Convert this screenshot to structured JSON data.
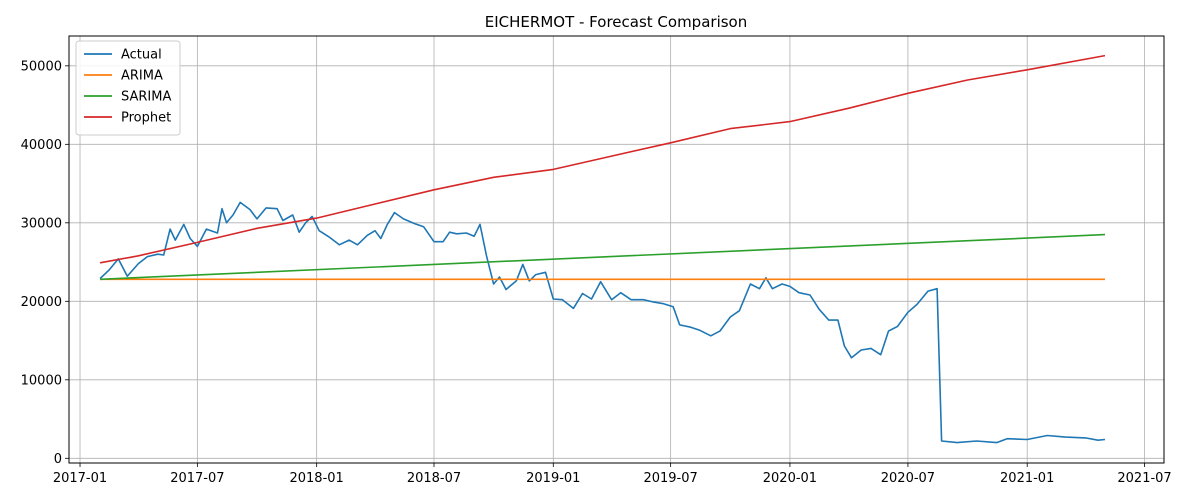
{
  "chart_data": {
    "type": "line",
    "title": "EICHERMOT - Forecast Comparison",
    "xlabel": "",
    "ylabel": "",
    "x_ticks": [
      "2017-01",
      "2017-07",
      "2018-01",
      "2018-07",
      "2019-01",
      "2019-07",
      "2020-01",
      "2020-07",
      "2021-01",
      "2021-07"
    ],
    "y_ticks": [
      0,
      10000,
      20000,
      30000,
      40000,
      50000
    ],
    "xlim": [
      "2016-12-15",
      "2021-07-31"
    ],
    "ylim": [
      -600,
      53800
    ],
    "grid": true,
    "legend_position": "top-left",
    "series": [
      {
        "name": "Actual",
        "color": "#1f77b4",
        "points": [
          [
            "2017-02-01",
            22900
          ],
          [
            "2017-02-15",
            24000
          ],
          [
            "2017-03-01",
            25400
          ],
          [
            "2017-03-15",
            23200
          ],
          [
            "2017-04-01",
            24800
          ],
          [
            "2017-04-15",
            25700
          ],
          [
            "2017-05-01",
            26000
          ],
          [
            "2017-05-10",
            25900
          ],
          [
            "2017-05-20",
            29200
          ],
          [
            "2017-05-28",
            27800
          ],
          [
            "2017-06-10",
            29800
          ],
          [
            "2017-06-20",
            28000
          ],
          [
            "2017-07-01",
            27000
          ],
          [
            "2017-07-15",
            29200
          ],
          [
            "2017-08-01",
            28700
          ],
          [
            "2017-08-08",
            31800
          ],
          [
            "2017-08-15",
            30000
          ],
          [
            "2017-08-25",
            31000
          ],
          [
            "2017-09-05",
            32600
          ],
          [
            "2017-09-20",
            31700
          ],
          [
            "2017-10-01",
            30500
          ],
          [
            "2017-10-15",
            31900
          ],
          [
            "2017-11-01",
            31800
          ],
          [
            "2017-11-10",
            30300
          ],
          [
            "2017-11-25",
            31000
          ],
          [
            "2017-12-05",
            28800
          ],
          [
            "2017-12-15",
            30000
          ],
          [
            "2017-12-25",
            30800
          ],
          [
            "2018-01-05",
            29000
          ],
          [
            "2018-01-20",
            28200
          ],
          [
            "2018-02-05",
            27200
          ],
          [
            "2018-02-20",
            27800
          ],
          [
            "2018-03-05",
            27200
          ],
          [
            "2018-03-20",
            28400
          ],
          [
            "2018-04-01",
            29000
          ],
          [
            "2018-04-10",
            28000
          ],
          [
            "2018-04-20",
            29800
          ],
          [
            "2018-05-01",
            31300
          ],
          [
            "2018-05-15",
            30500
          ],
          [
            "2018-06-01",
            29900
          ],
          [
            "2018-06-15",
            29500
          ],
          [
            "2018-07-01",
            27600
          ],
          [
            "2018-07-15",
            27600
          ],
          [
            "2018-07-25",
            28800
          ],
          [
            "2018-08-05",
            28600
          ],
          [
            "2018-08-20",
            28700
          ],
          [
            "2018-09-01",
            28300
          ],
          [
            "2018-09-10",
            29800
          ],
          [
            "2018-09-20",
            25800
          ],
          [
            "2018-10-01",
            22200
          ],
          [
            "2018-10-10",
            23100
          ],
          [
            "2018-10-20",
            21500
          ],
          [
            "2018-11-05",
            22600
          ],
          [
            "2018-11-15",
            24700
          ],
          [
            "2018-11-25",
            22600
          ],
          [
            "2018-12-05",
            23400
          ],
          [
            "2018-12-20",
            23700
          ],
          [
            "2019-01-01",
            20300
          ],
          [
            "2019-01-15",
            20200
          ],
          [
            "2019-02-01",
            19100
          ],
          [
            "2019-02-15",
            21000
          ],
          [
            "2019-03-01",
            20300
          ],
          [
            "2019-03-15",
            22500
          ],
          [
            "2019-04-01",
            20200
          ],
          [
            "2019-04-15",
            21100
          ],
          [
            "2019-05-01",
            20200
          ],
          [
            "2019-05-20",
            20200
          ],
          [
            "2019-06-05",
            19900
          ],
          [
            "2019-06-20",
            19700
          ],
          [
            "2019-07-05",
            19300
          ],
          [
            "2019-07-15",
            17000
          ],
          [
            "2019-08-01",
            16700
          ],
          [
            "2019-08-15",
            16300
          ],
          [
            "2019-09-01",
            15600
          ],
          [
            "2019-09-15",
            16200
          ],
          [
            "2019-10-01",
            18000
          ],
          [
            "2019-10-15",
            18800
          ],
          [
            "2019-11-01",
            22200
          ],
          [
            "2019-11-15",
            21600
          ],
          [
            "2019-11-25",
            23000
          ],
          [
            "2019-12-05",
            21600
          ],
          [
            "2019-12-20",
            22200
          ],
          [
            "2020-01-01",
            21900
          ],
          [
            "2020-01-15",
            21100
          ],
          [
            "2020-02-01",
            20800
          ],
          [
            "2020-02-15",
            19000
          ],
          [
            "2020-03-01",
            17600
          ],
          [
            "2020-03-15",
            17600
          ],
          [
            "2020-03-25",
            14300
          ],
          [
            "2020-04-05",
            12800
          ],
          [
            "2020-04-20",
            13800
          ],
          [
            "2020-05-05",
            14000
          ],
          [
            "2020-05-20",
            13200
          ],
          [
            "2020-06-01",
            16200
          ],
          [
            "2020-06-15",
            16800
          ],
          [
            "2020-07-01",
            18600
          ],
          [
            "2020-07-15",
            19600
          ],
          [
            "2020-08-01",
            21300
          ],
          [
            "2020-08-15",
            21600
          ],
          [
            "2020-08-22",
            2200
          ],
          [
            "2020-09-15",
            2000
          ],
          [
            "2020-10-15",
            2200
          ],
          [
            "2020-11-15",
            2000
          ],
          [
            "2020-12-01",
            2500
          ],
          [
            "2021-01-01",
            2400
          ],
          [
            "2021-02-01",
            2900
          ],
          [
            "2021-03-01",
            2700
          ],
          [
            "2021-04-01",
            2600
          ],
          [
            "2021-04-20",
            2300
          ],
          [
            "2021-05-01",
            2400
          ]
        ]
      },
      {
        "name": "ARIMA",
        "color": "#ff7f0e",
        "points": [
          [
            "2017-02-01",
            22800
          ],
          [
            "2021-05-01",
            22800
          ]
        ]
      },
      {
        "name": "SARIMA",
        "color": "#2ca02c",
        "points": [
          [
            "2017-02-01",
            22800
          ],
          [
            "2021-05-01",
            28500
          ]
        ]
      },
      {
        "name": "Prophet",
        "color": "#d62728",
        "points": [
          [
            "2017-02-01",
            24900
          ],
          [
            "2017-04-01",
            25800
          ],
          [
            "2017-07-01",
            27500
          ],
          [
            "2017-10-01",
            29300
          ],
          [
            "2018-01-01",
            30600
          ],
          [
            "2018-04-01",
            32400
          ],
          [
            "2018-07-01",
            34200
          ],
          [
            "2018-10-01",
            35800
          ],
          [
            "2019-01-01",
            36800
          ],
          [
            "2019-04-01",
            38500
          ],
          [
            "2019-07-01",
            40200
          ],
          [
            "2019-10-01",
            42000
          ],
          [
            "2020-01-01",
            42900
          ],
          [
            "2020-04-01",
            44600
          ],
          [
            "2020-07-01",
            46500
          ],
          [
            "2020-10-01",
            48200
          ],
          [
            "2021-01-01",
            49500
          ],
          [
            "2021-05-01",
            51300
          ]
        ]
      }
    ]
  }
}
